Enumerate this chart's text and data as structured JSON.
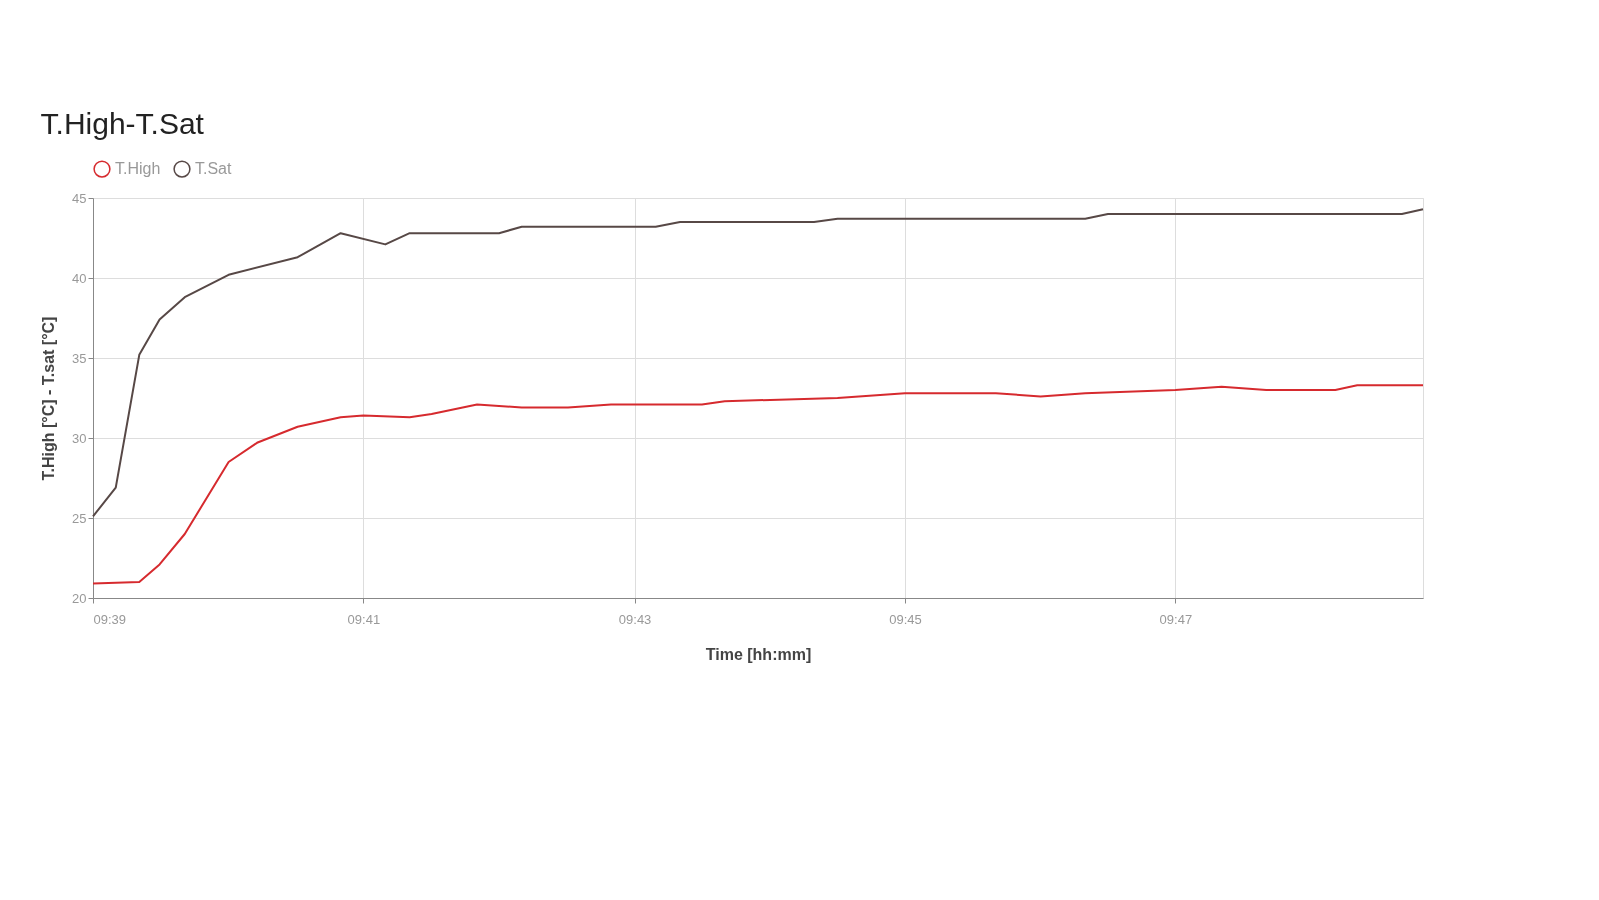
{
  "chart_data": {
    "type": "line",
    "title": "T.High-T.Sat",
    "xlabel": "Time [hh:mm]",
    "ylabel": "T.High [°C] - T.sat [°C]",
    "xlim": [
      9.65,
      9.8138
    ],
    "xticks": [
      {
        "value": 9.65,
        "label": "09:39"
      },
      {
        "value": 9.6833,
        "label": "09:41"
      },
      {
        "value": 9.7167,
        "label": "09:43"
      },
      {
        "value": 9.75,
        "label": "09:45"
      },
      {
        "value": 9.7833,
        "label": "09:47"
      }
    ],
    "ylim": [
      20,
      45
    ],
    "yticks": [
      20,
      25,
      30,
      35,
      40,
      45
    ],
    "grid": true,
    "legend": "top",
    "marker": "none",
    "line_style": "solid",
    "series": [
      {
        "name": "T.High",
        "color": "#d62a2e",
        "x": [
          9.65,
          9.6557,
          9.6582,
          9.6613,
          9.6667,
          9.6702,
          9.6752,
          9.6805,
          9.6833,
          9.689,
          9.6917,
          9.6973,
          9.7028,
          9.7085,
          9.7138,
          9.725,
          9.7278,
          9.7417,
          9.75,
          9.7612,
          9.7667,
          9.7722,
          9.7833,
          9.789,
          9.7945,
          9.803,
          9.8057,
          9.8138
        ],
        "values": [
          20.9,
          21.0,
          22.1,
          24.0,
          28.5,
          29.7,
          30.7,
          31.3,
          31.4,
          31.3,
          31.5,
          32.1,
          31.9,
          31.9,
          32.1,
          32.1,
          32.3,
          32.5,
          32.8,
          32.8,
          32.6,
          32.8,
          33.0,
          33.2,
          33.0,
          33.0,
          33.3,
          33.3
        ]
      },
      {
        "name": "T.Sat",
        "color": "#574846",
        "x": [
          9.65,
          9.6528,
          9.6557,
          9.6582,
          9.6613,
          9.6667,
          9.6752,
          9.6805,
          9.686,
          9.689,
          9.7,
          9.7028,
          9.7193,
          9.7223,
          9.7388,
          9.7417,
          9.7722,
          9.775,
          9.8112,
          9.8138
        ],
        "values": [
          25.1,
          26.9,
          35.2,
          37.4,
          38.8,
          40.2,
          41.3,
          42.8,
          42.1,
          42.8,
          42.8,
          43.2,
          43.2,
          43.5,
          43.5,
          43.7,
          43.7,
          44.0,
          44.0,
          44.3
        ]
      }
    ]
  }
}
